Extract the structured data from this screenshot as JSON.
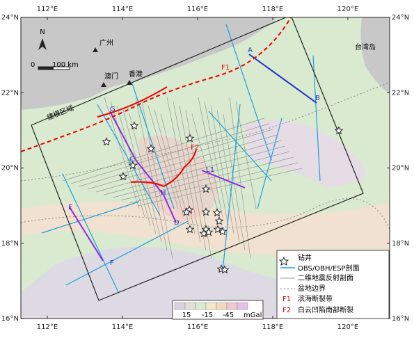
{
  "axes": {
    "longitudes": [
      "112°E",
      "114°E",
      "116°E",
      "118°E",
      "120°E"
    ],
    "latitudes": [
      "24°N",
      "22°N",
      "20°N",
      "18°N",
      "16°N"
    ]
  },
  "places": {
    "guangzhou": "广州",
    "hongkong": "香港",
    "macau": "澳门",
    "taiwan": "台湾岛",
    "model_area": "建模区域"
  },
  "north": "N",
  "scale": {
    "zero": "0",
    "distance": "100 km"
  },
  "faults": {
    "f1": "F1",
    "f2": "F2"
  },
  "profiles": [
    "A",
    "B",
    "C",
    "D",
    "E",
    "F",
    "G",
    "H",
    "L1"
  ],
  "legend": {
    "wells": "钻井",
    "obs": "OBS/OBH/ESP剖面",
    "seismic": "二维地震反射剖面",
    "basin": "盆地边界",
    "f1_code": "F1",
    "f1_name": "滨海断裂带",
    "f2_code": "F2",
    "f2_name": "白云凹陷南部断裂"
  },
  "colorbar": {
    "ticks": [
      "15",
      "-15",
      "-45"
    ],
    "unit": "mGal"
  }
}
